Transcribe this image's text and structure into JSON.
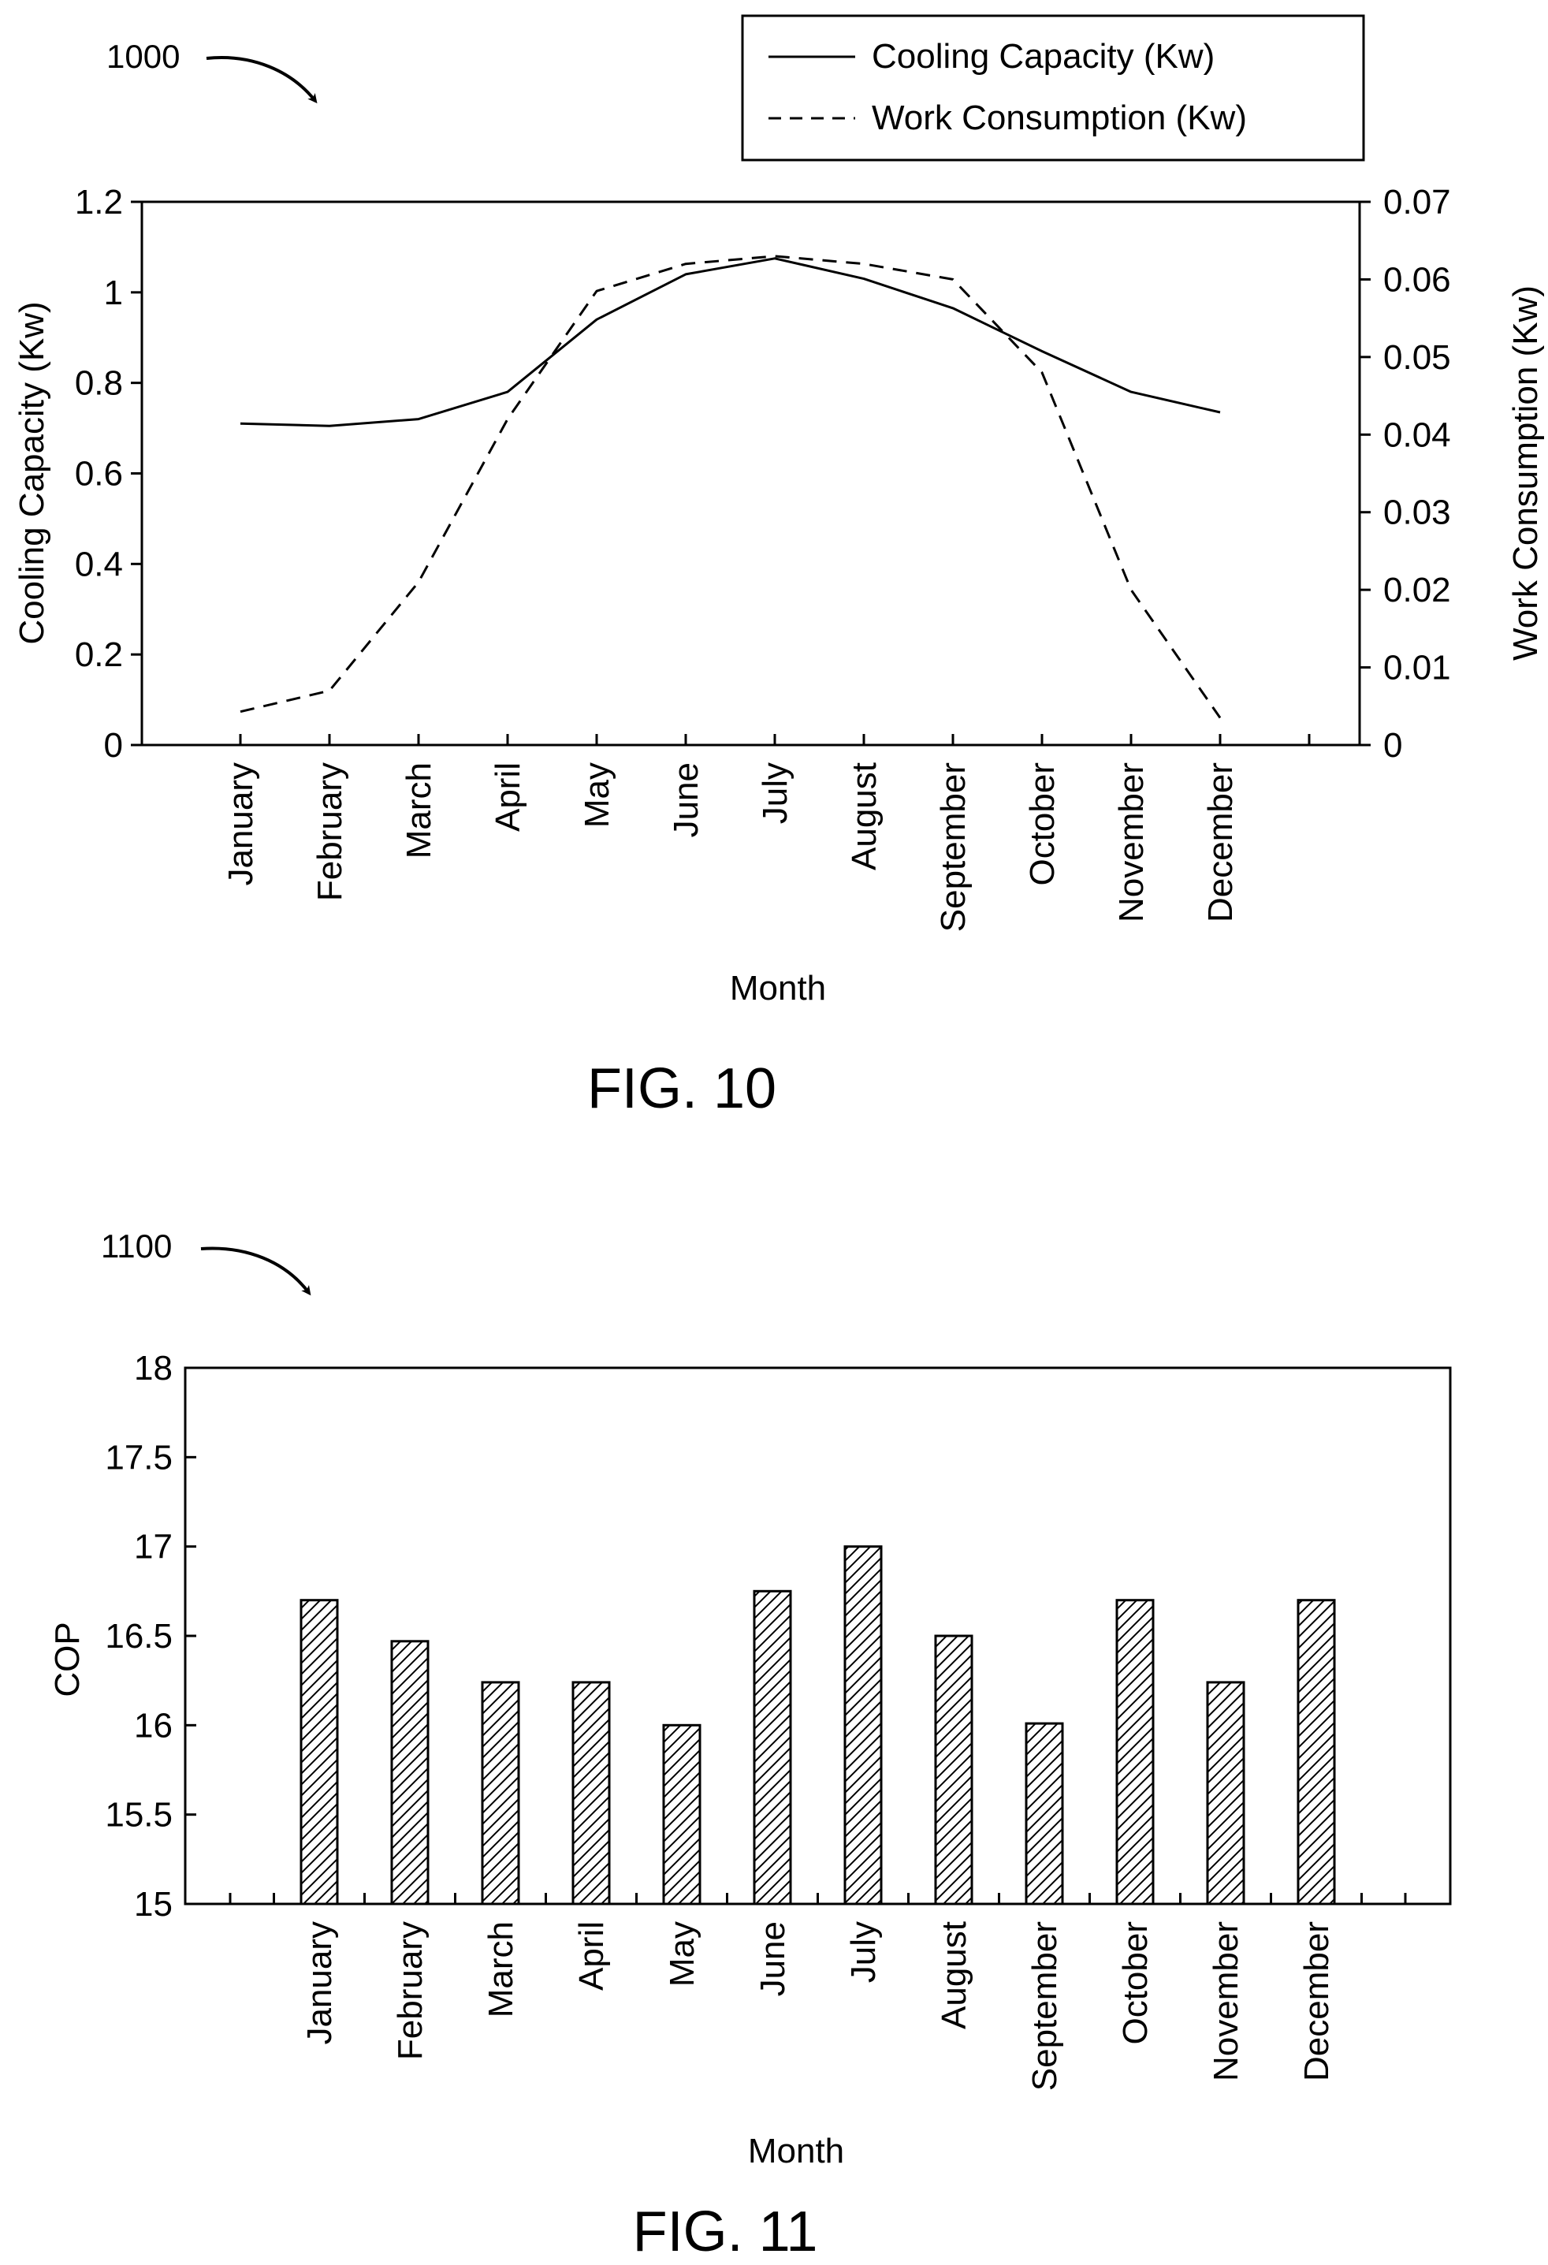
{
  "figures": [
    {
      "ref": "1000",
      "caption": "FIG. 10"
    },
    {
      "ref": "1100",
      "caption": "FIG. 11"
    }
  ],
  "chart_data": [
    {
      "type": "line",
      "categories": [
        "January",
        "February",
        "March",
        "April",
        "May",
        "June",
        "July",
        "August",
        "September",
        "October",
        "November",
        "December"
      ],
      "xlabel": "Month",
      "ylabel": "Cooling Capacity (Kw)",
      "y2label": "Work Consumption (Kw)",
      "ylim": [
        0,
        1.2
      ],
      "y2lim": [
        0,
        0.07
      ],
      "yticks": [
        "0",
        "0.2",
        "0.4",
        "0.6",
        "0.8",
        "1",
        "1.2"
      ],
      "y2ticks": [
        "0",
        "0.01",
        "0.02",
        "0.03",
        "0.04",
        "0.05",
        "0.06",
        "0.07"
      ],
      "legend_position": "top-right",
      "grid": false,
      "series": [
        {
          "name": "Cooling Capacity (Kw)",
          "axis": "left",
          "line_style": "solid",
          "values": [
            0.71,
            0.705,
            0.72,
            0.78,
            0.94,
            1.04,
            1.075,
            1.03,
            0.965,
            0.87,
            0.78,
            0.735
          ]
        },
        {
          "name": "Work Consumption (Kw)",
          "axis": "right",
          "line_style": "dashed",
          "values": [
            0.0043,
            0.007,
            0.021,
            0.042,
            0.0585,
            0.062,
            0.063,
            0.062,
            0.06,
            0.048,
            0.02,
            0.0035
          ]
        }
      ]
    },
    {
      "type": "bar",
      "categories": [
        "January",
        "February",
        "March",
        "April",
        "May",
        "June",
        "July",
        "August",
        "September",
        "October",
        "November",
        "December"
      ],
      "xlabel": "Month",
      "ylabel": "COP",
      "ylim": [
        15,
        18
      ],
      "yticks": [
        "15",
        "15.5",
        "16",
        "16.5",
        "17",
        "17.5",
        "18"
      ],
      "bar_fill": "hatched",
      "grid": false,
      "values": [
        16.7,
        16.47,
        16.24,
        16.24,
        16.0,
        16.75,
        17.0,
        16.5,
        16.01,
        16.7,
        16.24,
        16.7
      ]
    }
  ]
}
